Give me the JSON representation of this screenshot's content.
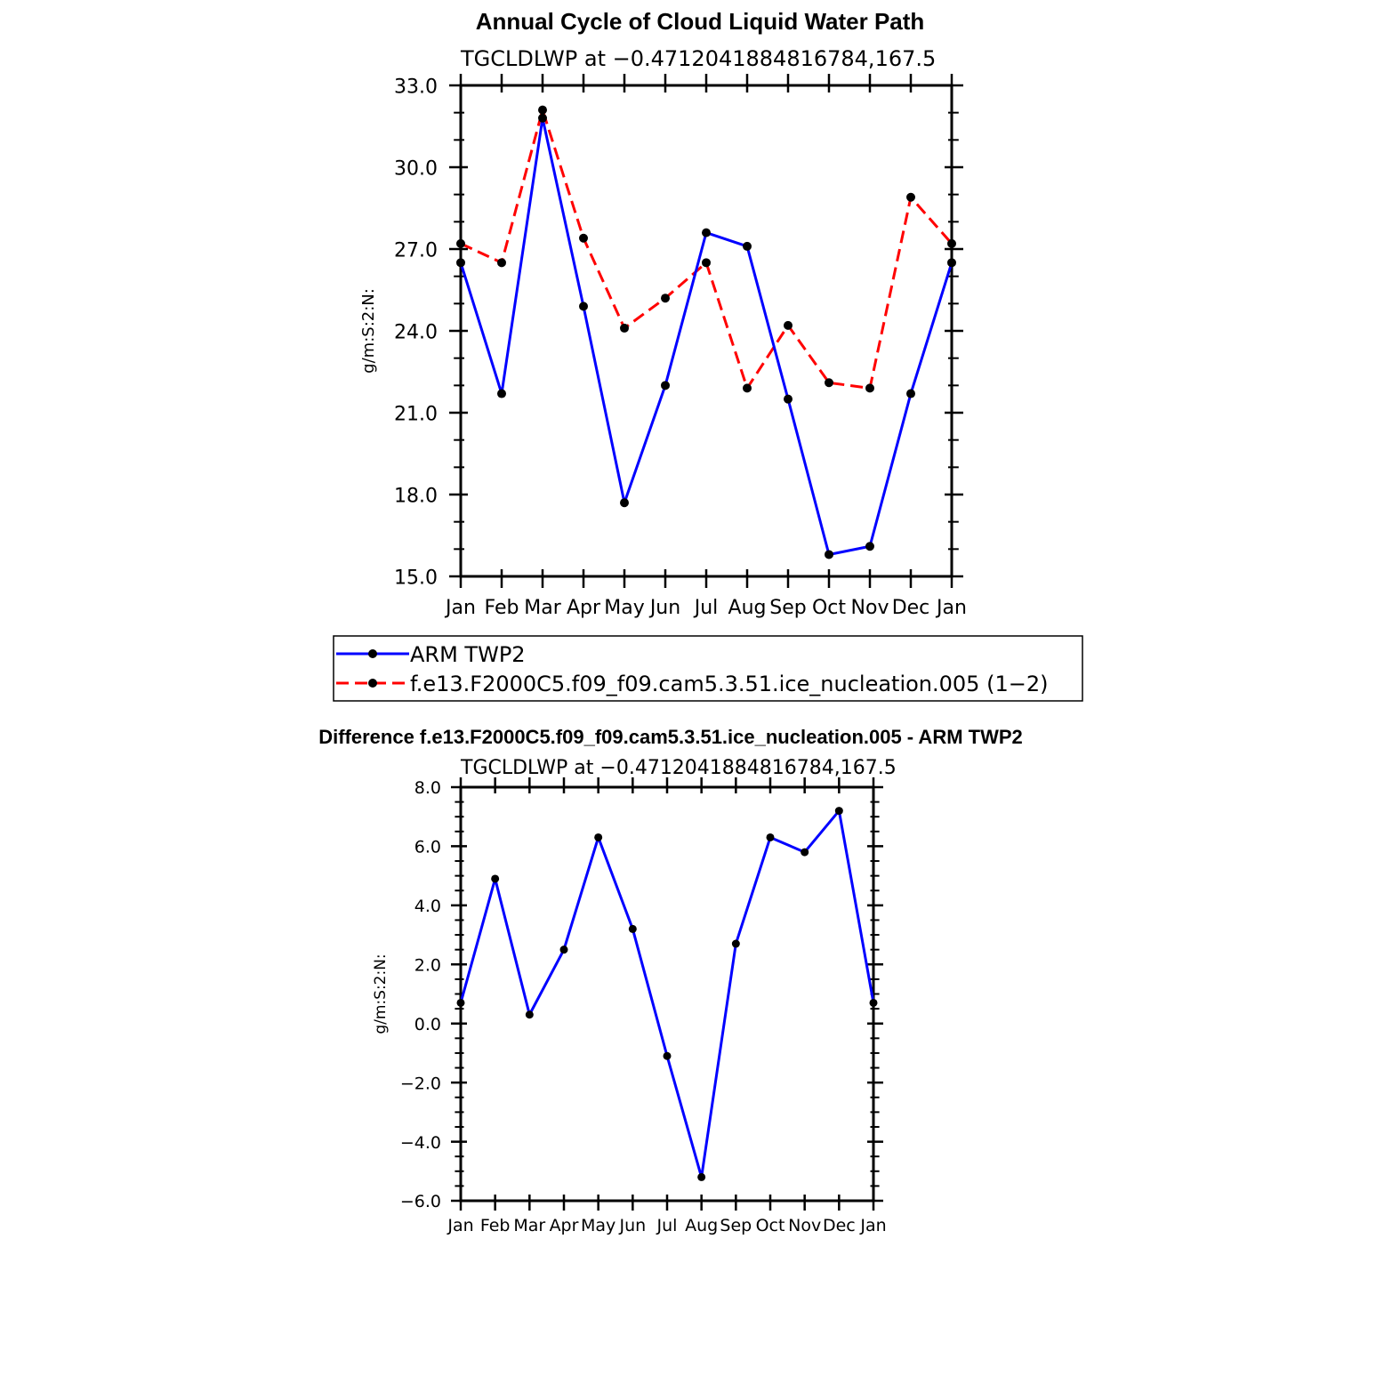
{
  "figure": {
    "main_title": "Annual Cycle of Cloud Liquid Water Path",
    "diff_title": "Difference f.e13.F2000C5.f09_f09.cam5.3.51.ice_nucleation.005 - ARM TWP2"
  },
  "chart_data": [
    {
      "type": "line",
      "title": "Annual Cycle of Cloud Liquid Water Path",
      "subtitle": "TGCLDLWP at −0.4712041884816784,167.5",
      "xlabel": "",
      "ylabel": "g/m:S:2:N:",
      "categories": [
        "Jan",
        "Feb",
        "Mar",
        "Apr",
        "May",
        "Jun",
        "Jul",
        "Aug",
        "Sep",
        "Oct",
        "Nov",
        "Dec",
        "Jan"
      ],
      "ylim": [
        15.0,
        33.0
      ],
      "yticks": [
        15.0,
        18.0,
        21.0,
        24.0,
        27.0,
        30.0,
        33.0
      ],
      "ytick_labels": [
        "15.0",
        "18.0",
        "21.0",
        "24.0",
        "27.0",
        "30.0",
        "33.0"
      ],
      "grid": false,
      "legend_position": "bottom",
      "series": [
        {
          "name": "ARM TWP2",
          "color": "#0000ff",
          "dash": "solid",
          "values": [
            26.5,
            21.7,
            31.8,
            24.9,
            17.7,
            22.0,
            27.6,
            27.1,
            21.5,
            15.8,
            16.1,
            21.7,
            26.5
          ]
        },
        {
          "name": "f.e13.F2000C5.f09_f09.cam5.3.51.ice_nucleation.005 (1−2)",
          "color": "#ff0000",
          "dash": "dashed",
          "values": [
            27.2,
            26.5,
            32.1,
            27.4,
            24.1,
            25.2,
            26.5,
            21.9,
            24.2,
            22.1,
            21.9,
            28.9,
            27.2
          ]
        }
      ]
    },
    {
      "type": "line",
      "title": "Difference f.e13.F2000C5.f09_f09.cam5.3.51.ice_nucleation.005 - ARM TWP2",
      "subtitle": "TGCLDLWP at −0.4712041884816784,167.5",
      "xlabel": "",
      "ylabel": "g/m:S:2:N:",
      "categories": [
        "Jan",
        "Feb",
        "Mar",
        "Apr",
        "May",
        "Jun",
        "Jul",
        "Aug",
        "Sep",
        "Oct",
        "Nov",
        "Dec",
        "Jan"
      ],
      "ylim": [
        -6.0,
        8.0
      ],
      "yticks": [
        -6.0,
        -4.0,
        -2.0,
        0.0,
        2.0,
        4.0,
        6.0,
        8.0
      ],
      "ytick_labels": [
        "−6.0",
        "−4.0",
        "−2.0",
        "0.0",
        "2.0",
        "4.0",
        "6.0",
        "8.0"
      ],
      "grid": false,
      "series": [
        {
          "color": "#0000ff",
          "dash": "solid",
          "values": [
            0.7,
            4.9,
            0.3,
            2.5,
            6.3,
            3.2,
            -1.1,
            -5.2,
            2.7,
            6.3,
            5.8,
            7.2,
            0.7
          ]
        }
      ]
    }
  ]
}
